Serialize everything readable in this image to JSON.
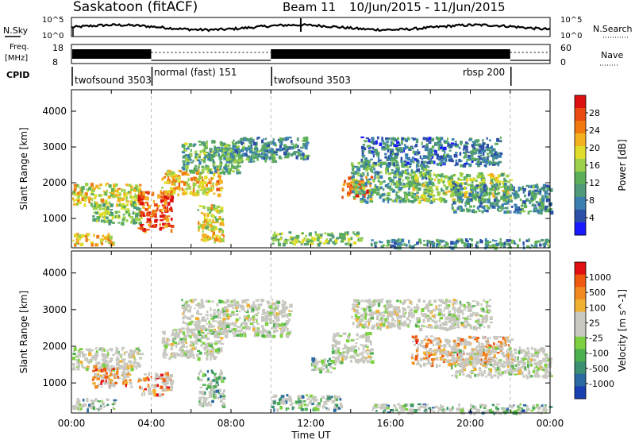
{
  "header": {
    "station": "Saskatoon (fitACF)",
    "beam": "Beam 11",
    "date_range": "10/Jun/2015 - 11/Jun/2015"
  },
  "noise_panel": {
    "left_label": "N.Sky",
    "right_label": "N.Search",
    "left_ticks": [
      "10^5",
      "10^0"
    ],
    "right_ticks": [
      "10^5",
      "10^0"
    ]
  },
  "freq_panel": {
    "left_label_line1": "Freq.",
    "left_label_line2": "[MHz]",
    "left_ticks": [
      "18",
      "8"
    ],
    "right_ticks": [
      "60",
      "0"
    ],
    "right_label": "Nave"
  },
  "cpid": {
    "label": "CPID",
    "segments": [
      {
        "name": "twofsound 3503",
        "start_hour": 0
      },
      {
        "name": "normal (fast) 151",
        "start_hour": 4
      },
      {
        "name": "twofsound 3503",
        "start_hour": 10
      },
      {
        "name": "rbsp 200",
        "start_hour": 22
      }
    ]
  },
  "chart_data": [
    {
      "type": "heatmap",
      "panel": "power",
      "ylabel": "Slant Range [km]",
      "yticks": [
        1000,
        2000,
        3000,
        4000
      ],
      "ylim": [
        180,
        4600
      ],
      "xlim": [
        0,
        24
      ],
      "colorbar_label": "Power [dB]",
      "colorbar_ticks": [
        "28",
        "24",
        "20",
        "16",
        "12",
        "8",
        "4"
      ],
      "colorbar_colors": [
        "#1a1aff",
        "#2c4fa8",
        "#3a7fb0",
        "#4f9a78",
        "#5db05a",
        "#9cd04a",
        "#e0dd2a",
        "#f5b020",
        "#f07a10",
        "#e84a10",
        "#dd1010"
      ],
      "echo_regions": [
        {
          "hour_start": 0.0,
          "hour_end": 2.2,
          "range_start": 300,
          "range_end": 600,
          "level": 0.65
        },
        {
          "hour_start": 0.0,
          "hour_end": 3.5,
          "range_start": 1400,
          "range_end": 2000,
          "level": 0.6
        },
        {
          "hour_start": 1.0,
          "hour_end": 3.5,
          "range_start": 900,
          "range_end": 1500,
          "level": 0.45
        },
        {
          "hour_start": 3.3,
          "hour_end": 5.0,
          "range_start": 700,
          "range_end": 1800,
          "level": 0.85
        },
        {
          "hour_start": 4.5,
          "hour_end": 7.5,
          "range_start": 1700,
          "range_end": 2400,
          "level": 0.65
        },
        {
          "hour_start": 5.5,
          "hour_end": 8.5,
          "range_start": 2300,
          "range_end": 3200,
          "level": 0.4
        },
        {
          "hour_start": 6.3,
          "hour_end": 7.6,
          "range_start": 400,
          "range_end": 1400,
          "level": 0.6
        },
        {
          "hour_start": 6.8,
          "hour_end": 10.2,
          "range_start": 2600,
          "range_end": 3000,
          "level": 0.35
        },
        {
          "hour_start": 8.0,
          "hour_end": 11.8,
          "range_start": 2700,
          "range_end": 3300,
          "level": 0.3
        },
        {
          "hour_start": 10.0,
          "hour_end": 14.5,
          "range_start": 300,
          "range_end": 650,
          "level": 0.45
        },
        {
          "hour_start": 13.5,
          "hour_end": 15.0,
          "range_start": 1600,
          "range_end": 2200,
          "level": 0.75
        },
        {
          "hour_start": 14.0,
          "hour_end": 18.0,
          "range_start": 1500,
          "range_end": 2600,
          "level": 0.35
        },
        {
          "hour_start": 14.5,
          "hour_end": 21.5,
          "range_start": 2500,
          "range_end": 3300,
          "level": 0.25
        },
        {
          "hour_start": 17.0,
          "hour_end": 22.0,
          "range_start": 1500,
          "range_end": 2300,
          "level": 0.5
        },
        {
          "hour_start": 19.0,
          "hour_end": 24.0,
          "range_start": 1200,
          "range_end": 2000,
          "level": 0.3
        },
        {
          "hour_start": 15.0,
          "hour_end": 24.0,
          "range_start": 200,
          "range_end": 450,
          "level": 0.3
        }
      ]
    },
    {
      "type": "heatmap",
      "panel": "velocity",
      "ylabel": "Slant Range [km]",
      "yticks": [
        1000,
        2000,
        3000,
        4000
      ],
      "ylim": [
        180,
        4600
      ],
      "xlim": [
        0,
        24
      ],
      "xticks": [
        "00:00",
        "04:00",
        "08:00",
        "12:00",
        "16:00",
        "20:00",
        "00:00"
      ],
      "xlabel": "Time UT",
      "colorbar_label": "Velocity [m s^-1]",
      "colorbar_ticks": [
        "1000",
        "500",
        "100",
        "25",
        "-25",
        "-100",
        "-500",
        "-1000"
      ],
      "colorbar_colors": [
        "#1a3fb0",
        "#2a6aa0",
        "#3a9070",
        "#4cb050",
        "#7dd040",
        "#c8c8c0",
        "#c8c8c0",
        "#f0b030",
        "#f08a20",
        "#f05a10",
        "#e01010"
      ],
      "echo_regions": [
        {
          "hour_start": 0.0,
          "hour_end": 2.2,
          "range_start": 300,
          "range_end": 600,
          "level": 0.25
        },
        {
          "hour_start": 0.0,
          "hour_end": 3.5,
          "range_start": 1400,
          "range_end": 2000,
          "level": 0.5
        },
        {
          "hour_start": 1.0,
          "hour_end": 3.0,
          "range_start": 900,
          "range_end": 1500,
          "level": 0.8
        },
        {
          "hour_start": 3.3,
          "hour_end": 5.0,
          "range_start": 700,
          "range_end": 1300,
          "level": 0.85
        },
        {
          "hour_start": 4.5,
          "hour_end": 7.5,
          "range_start": 1700,
          "range_end": 2500,
          "level": 0.5
        },
        {
          "hour_start": 5.5,
          "hour_end": 11.0,
          "range_start": 2300,
          "range_end": 3300,
          "level": 0.5
        },
        {
          "hour_start": 6.3,
          "hour_end": 7.6,
          "range_start": 400,
          "range_end": 1400,
          "level": 0.3
        },
        {
          "hour_start": 10.0,
          "hour_end": 13.5,
          "range_start": 300,
          "range_end": 700,
          "level": 0.3
        },
        {
          "hour_start": 12.0,
          "hour_end": 13.5,
          "range_start": 1300,
          "range_end": 1700,
          "level": 0.3
        },
        {
          "hour_start": 13.0,
          "hour_end": 15.0,
          "range_start": 1600,
          "range_end": 2400,
          "level": 0.5
        },
        {
          "hour_start": 14.0,
          "hour_end": 21.0,
          "range_start": 2500,
          "range_end": 3300,
          "level": 0.5
        },
        {
          "hour_start": 17.0,
          "hour_end": 22.0,
          "range_start": 1500,
          "range_end": 2300,
          "level": 0.75
        },
        {
          "hour_start": 19.0,
          "hour_end": 24.0,
          "range_start": 1200,
          "range_end": 2000,
          "level": 0.5
        },
        {
          "hour_start": 15.0,
          "hour_end": 24.0,
          "range_start": 200,
          "range_end": 450,
          "level": 0.25
        }
      ]
    }
  ]
}
